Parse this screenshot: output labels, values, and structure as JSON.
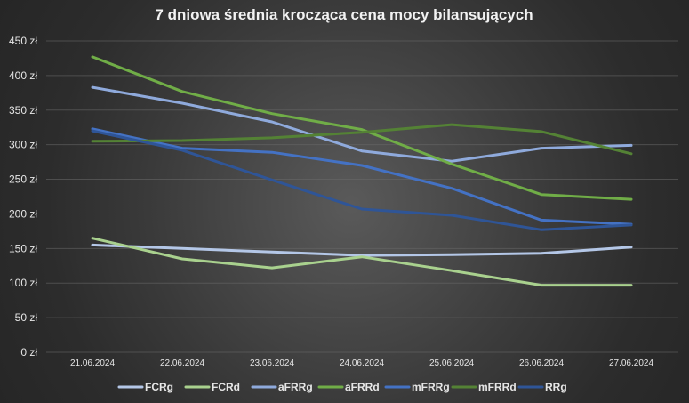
{
  "chart_data": {
    "type": "line",
    "title": "7 dniowa średnia krocząca cena mocy bilansujących",
    "xlabel": "",
    "ylabel": "",
    "ylim": [
      0,
      450
    ],
    "y_ticks": [
      0,
      50,
      100,
      150,
      200,
      250,
      300,
      350,
      400,
      450
    ],
    "y_tick_labels": [
      "0 zł",
      "50 zł",
      "100 zł",
      "150 zł",
      "200 zł",
      "250 zł",
      "300 zł",
      "350 zł",
      "400 zł",
      "450 zł"
    ],
    "categories": [
      "21.06.2024",
      "22.06.2024",
      "23.06.2024",
      "24.06.2024",
      "25.06.2024",
      "26.06.2024",
      "27.06.2024"
    ],
    "grid": true,
    "legend_position": "bottom",
    "series": [
      {
        "name": "FCRg",
        "color": "#b4c7e7",
        "values": [
          155,
          150,
          145,
          140,
          141,
          143,
          152
        ]
      },
      {
        "name": "FCRd",
        "color": "#a9d18e",
        "values": [
          165,
          135,
          122,
          138,
          118,
          97,
          97
        ]
      },
      {
        "name": "aFRRg",
        "color": "#8faadc",
        "values": [
          383,
          360,
          333,
          291,
          276,
          295,
          299
        ]
      },
      {
        "name": "aFRRd",
        "color": "#70ad47",
        "values": [
          427,
          377,
          345,
          322,
          272,
          228,
          221
        ]
      },
      {
        "name": "mFRRg",
        "color": "#4472c4",
        "values": [
          323,
          295,
          289,
          270,
          237,
          191,
          185
        ]
      },
      {
        "name": "mFRRd",
        "color": "#548235",
        "values": [
          305,
          306,
          310,
          318,
          329,
          319,
          287
        ]
      },
      {
        "name": "RRg",
        "color": "#2f5597",
        "values": [
          320,
          292,
          249,
          207,
          198,
          177,
          184
        ]
      }
    ]
  }
}
